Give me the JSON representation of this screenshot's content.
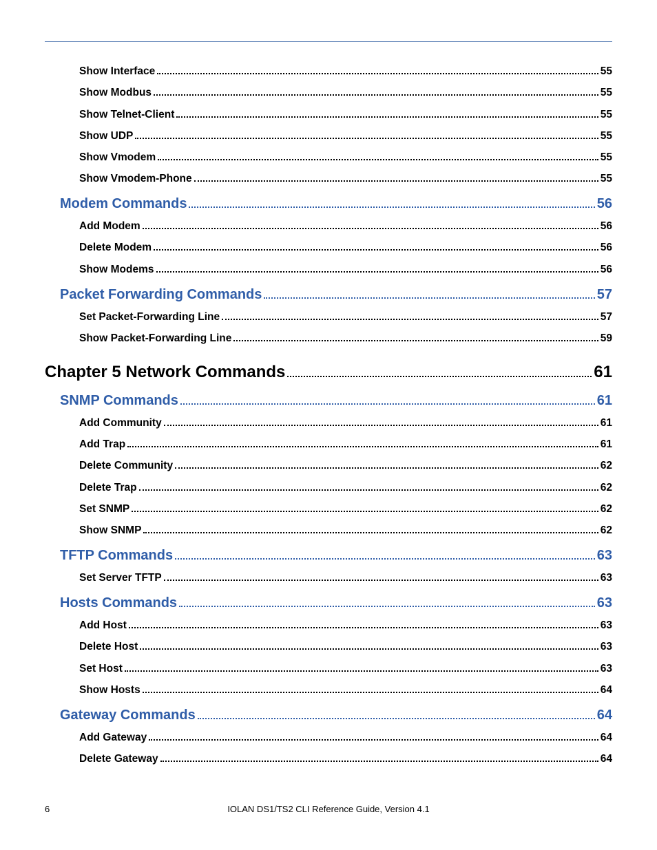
{
  "footer": {
    "page_number": "6",
    "title": "IOLAN DS1/TS2 CLI Reference Guide, Version 4.1"
  },
  "colors": {
    "rule": "#5b7fb5",
    "section": "#2f5da8",
    "text": "#000000",
    "background": "#ffffff"
  },
  "toc": [
    {
      "level": "item",
      "label": "Show Interface",
      "page": "55"
    },
    {
      "level": "item",
      "label": "Show Modbus",
      "page": "55"
    },
    {
      "level": "item",
      "label": "Show Telnet-Client",
      "page": "55"
    },
    {
      "level": "item",
      "label": "Show UDP",
      "page": "55"
    },
    {
      "level": "item",
      "label": "Show Vmodem",
      "page": "55"
    },
    {
      "level": "item",
      "label": "Show Vmodem-Phone",
      "page": "55"
    },
    {
      "level": "section",
      "label": "Modem Commands",
      "page": "56"
    },
    {
      "level": "item",
      "label": "Add Modem",
      "page": "56"
    },
    {
      "level": "item",
      "label": "Delete Modem",
      "page": "56"
    },
    {
      "level": "item",
      "label": "Show Modems",
      "page": "56"
    },
    {
      "level": "section",
      "label": "Packet Forwarding Commands",
      "page": "57"
    },
    {
      "level": "item",
      "label": "Set Packet-Forwarding Line",
      "page": "57"
    },
    {
      "level": "item",
      "label": "Show Packet-Forwarding Line",
      "page": "59"
    },
    {
      "level": "chapter",
      "label": "Chapter 5 Network Commands",
      "page": "61"
    },
    {
      "level": "section",
      "label": "SNMP Commands",
      "page": "61"
    },
    {
      "level": "item",
      "label": "Add Community",
      "page": "61"
    },
    {
      "level": "item",
      "label": "Add Trap",
      "page": "61"
    },
    {
      "level": "item",
      "label": "Delete Community",
      "page": "62"
    },
    {
      "level": "item",
      "label": "Delete Trap",
      "page": "62"
    },
    {
      "level": "item",
      "label": "Set SNMP",
      "page": "62"
    },
    {
      "level": "item",
      "label": "Show SNMP",
      "page": "62"
    },
    {
      "level": "section",
      "label": "TFTP Commands",
      "page": "63"
    },
    {
      "level": "item",
      "label": "Set Server TFTP",
      "page": "63"
    },
    {
      "level": "section",
      "label": "Hosts Commands",
      "page": "63"
    },
    {
      "level": "item",
      "label": "Add Host",
      "page": "63"
    },
    {
      "level": "item",
      "label": "Delete Host",
      "page": "63"
    },
    {
      "level": "item",
      "label": "Set Host",
      "page": "63"
    },
    {
      "level": "item",
      "label": "Show Hosts",
      "page": "64"
    },
    {
      "level": "section",
      "label": "Gateway Commands",
      "page": "64"
    },
    {
      "level": "item",
      "label": "Add Gateway",
      "page": "64"
    },
    {
      "level": "item",
      "label": "Delete Gateway",
      "page": "64"
    }
  ]
}
